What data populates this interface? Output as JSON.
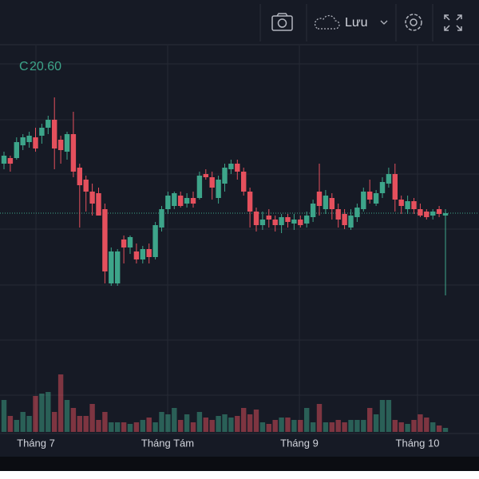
{
  "toolbar": {
    "save_label": "Lưu"
  },
  "chart_data": {
    "type": "candlestick",
    "legend": {
      "label": "C",
      "value": {
        "value": 20.6,
        "label": "20.60"
      }
    },
    "x_labels": [
      "Tháng 7",
      "Tháng Tám",
      "Tháng 9",
      "Tháng 10"
    ],
    "up_color": "#3da58a",
    "down_color": "#e5505d",
    "price_line_color": "#3da58a",
    "ylim": [
      17.82,
      22.67
    ],
    "open": [
      21.22,
      21.29,
      21.29,
      21.45,
      21.49,
      21.55,
      21.57,
      21.67,
      21.77,
      21.52,
      21.37,
      21.59,
      21.17,
      21.02,
      20.87,
      20.85,
      20.65,
      19.72,
      19.72,
      20.27,
      20.17,
      20.12,
      20.02,
      20.15,
      20.05,
      20.42,
      20.65,
      20.69,
      20.82,
      20.72,
      20.79,
      20.79,
      21.09,
      21.05,
      20.79,
      20.97,
      21.15,
      21.22,
      21.12,
      20.87,
      20.62,
      20.45,
      20.57,
      20.52,
      20.45,
      20.55,
      20.47,
      20.52,
      20.47,
      20.55,
      20.87,
      20.65,
      20.79,
      20.65,
      20.59,
      20.42,
      20.55,
      20.65,
      20.87,
      20.72,
      20.85,
      20.97,
      21.09,
      20.77,
      20.65,
      20.75,
      20.65,
      20.62,
      20.57,
      20.65,
      20.57
    ],
    "high": [
      21.37,
      21.32,
      21.55,
      21.59,
      21.62,
      21.67,
      21.72,
      21.82,
      22.05,
      21.57,
      21.62,
      21.87,
      21.22,
      21.07,
      20.97,
      20.92,
      20.72,
      20.17,
      20.15,
      20.32,
      20.32,
      20.22,
      20.19,
      20.22,
      20.49,
      20.69,
      20.87,
      20.87,
      20.87,
      20.85,
      20.87,
      21.12,
      21.15,
      21.12,
      21.07,
      21.22,
      21.27,
      21.27,
      21.17,
      20.92,
      20.67,
      20.62,
      20.65,
      20.57,
      20.59,
      20.59,
      20.59,
      20.57,
      20.62,
      20.77,
      21.22,
      20.89,
      20.85,
      20.72,
      20.65,
      20.65,
      20.72,
      20.92,
      21.02,
      20.89,
      21.05,
      21.17,
      21.22,
      20.82,
      20.82,
      20.79,
      20.72,
      20.65,
      20.65,
      20.69,
      20.65
    ],
    "low": [
      21.15,
      21.12,
      21.27,
      21.39,
      21.42,
      21.37,
      21.47,
      21.59,
      21.15,
      21.22,
      21.27,
      21.05,
      20.42,
      20.62,
      20.57,
      20.59,
      19.72,
      19.69,
      19.69,
      19.97,
      20.09,
      19.97,
      19.97,
      19.97,
      20.02,
      20.37,
      20.59,
      20.65,
      20.67,
      20.67,
      20.67,
      20.77,
      21.02,
      20.77,
      20.72,
      20.87,
      21.09,
      21.02,
      20.82,
      20.42,
      20.37,
      20.39,
      20.42,
      20.37,
      20.35,
      20.42,
      20.39,
      20.42,
      20.42,
      20.49,
      20.57,
      20.59,
      20.52,
      20.42,
      20.4,
      20.39,
      20.49,
      20.62,
      20.72,
      20.69,
      20.79,
      20.92,
      20.62,
      20.59,
      20.59,
      20.59,
      20.55,
      20.52,
      20.52,
      20.55,
      19.57
    ],
    "close": [
      21.32,
      21.22,
      21.49,
      21.55,
      21.57,
      21.41,
      21.67,
      21.77,
      21.41,
      21.39,
      21.59,
      21.12,
      20.95,
      20.87,
      20.72,
      20.57,
      19.87,
      20.12,
      20.12,
      20.17,
      20.3,
      20.02,
      20.15,
      20.05,
      20.45,
      20.65,
      20.82,
      20.85,
      20.69,
      20.79,
      20.72,
      21.07,
      21.05,
      20.92,
      21.02,
      21.17,
      21.22,
      21.12,
      20.87,
      20.62,
      20.45,
      20.52,
      20.52,
      20.45,
      20.55,
      20.49,
      20.52,
      20.45,
      20.57,
      20.72,
      20.69,
      20.82,
      20.65,
      20.52,
      20.45,
      20.57,
      20.67,
      20.87,
      20.77,
      20.85,
      20.99,
      21.09,
      20.77,
      20.69,
      20.75,
      20.65,
      20.57,
      20.55,
      20.62,
      20.59,
      20.6
    ],
    "volume": [
      40,
      20,
      15,
      25,
      20,
      45,
      48,
      50,
      25,
      72,
      40,
      30,
      20,
      20,
      35,
      15,
      25,
      12,
      12,
      12,
      10,
      12,
      15,
      18,
      12,
      25,
      22,
      30,
      15,
      22,
      12,
      25,
      18,
      15,
      20,
      22,
      18,
      20,
      30,
      22,
      28,
      12,
      10,
      15,
      18,
      18,
      15,
      15,
      30,
      12,
      35,
      12,
      12,
      15,
      12,
      15,
      15,
      15,
      30,
      22,
      40,
      40,
      15,
      12,
      10,
      15,
      22,
      18,
      12,
      8,
      5
    ],
    "y2lim": [
      0,
      100
    ]
  }
}
